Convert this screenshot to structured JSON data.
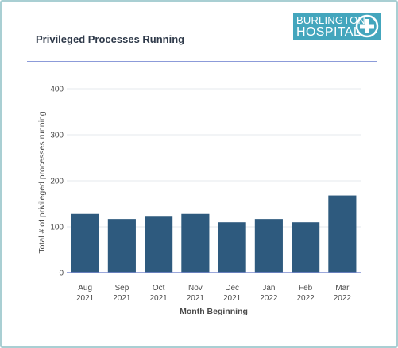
{
  "header": {
    "title": "Privileged Processes Running",
    "logo_line1": "BURLINGTON",
    "logo_line2": "HOSPITAL"
  },
  "colors": {
    "bar": "#2e5a7e",
    "accent": "#44a6bd",
    "divider": "#8c9bd9"
  },
  "chart_data": {
    "type": "bar",
    "categories": [
      [
        "Aug",
        "2021"
      ],
      [
        "Sep",
        "2021"
      ],
      [
        "Oct",
        "2021"
      ],
      [
        "Nov",
        "2021"
      ],
      [
        "Dec",
        "2021"
      ],
      [
        "Jan",
        "2022"
      ],
      [
        "Feb",
        "2022"
      ],
      [
        "Mar",
        "2022"
      ]
    ],
    "values": [
      128,
      117,
      122,
      128,
      110,
      117,
      110,
      168
    ],
    "xlabel": "Month Beginning",
    "ylabel": "Total # of privileged processes running",
    "ylim": [
      0,
      400
    ],
    "yticks": [
      0,
      100,
      200,
      300,
      400
    ],
    "grid": true
  }
}
